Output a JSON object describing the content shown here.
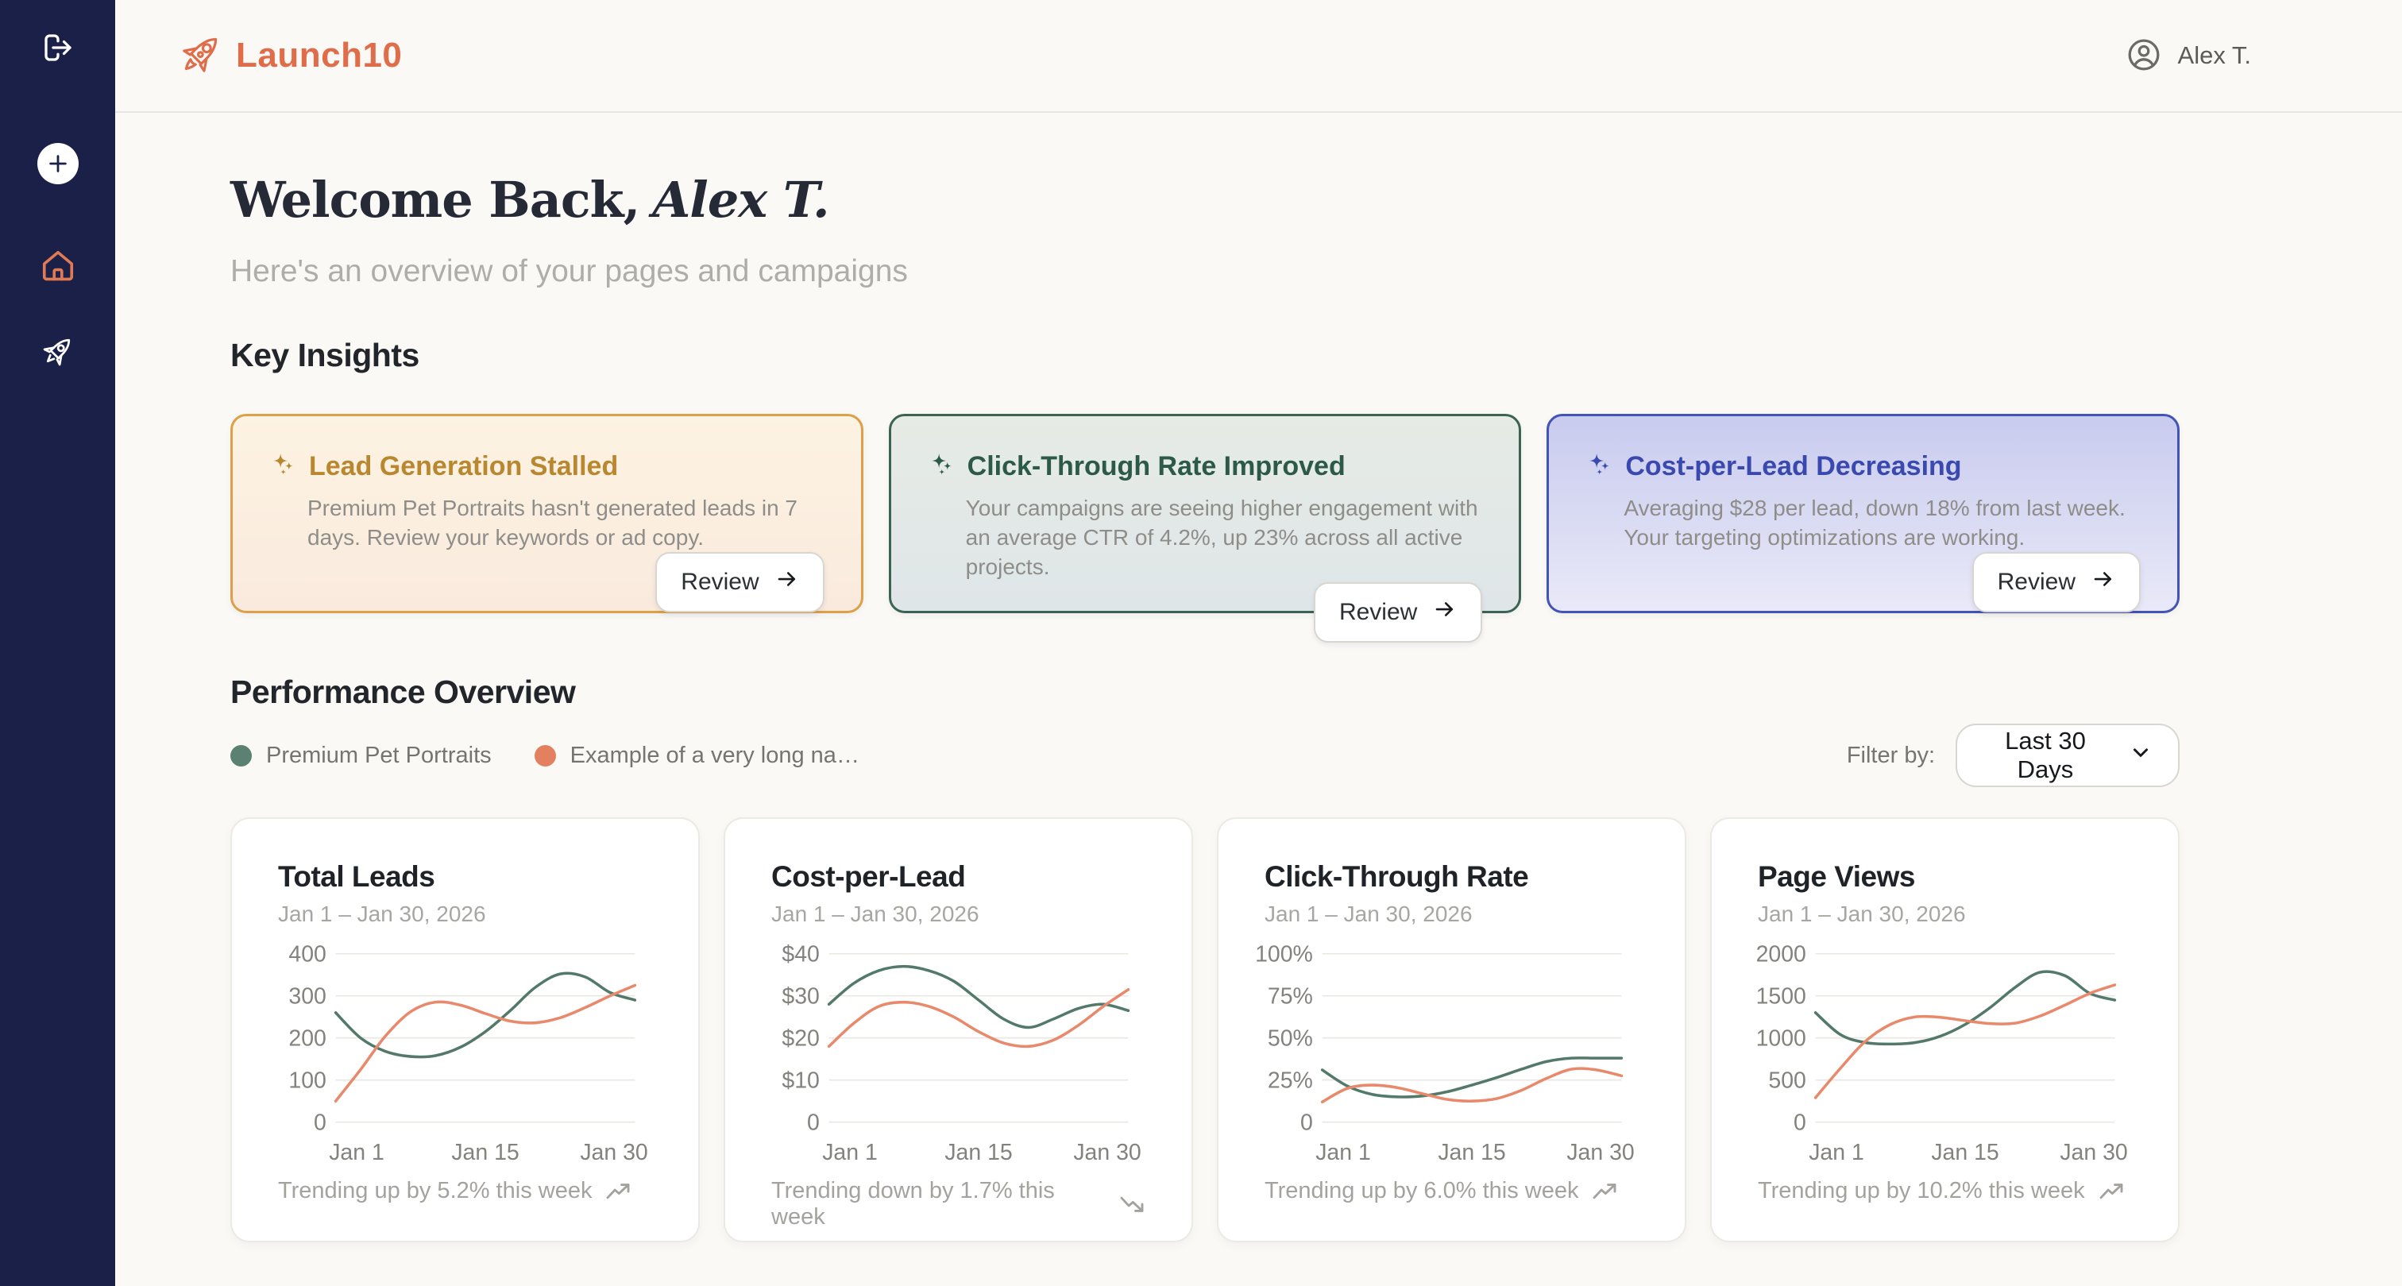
{
  "app": {
    "brand": "Launch10",
    "user_name": "Alex T."
  },
  "sidebar": {
    "icons": [
      "logout-icon",
      "add-icon",
      "home-icon",
      "rocket-icon"
    ],
    "bg_color": "#1b2049",
    "home_icon_color": "#e07a55"
  },
  "welcome": {
    "title_prefix": "Welcome Back,",
    "title_name": "Alex T.",
    "subtitle": "Here's an overview of your pages and campaigns"
  },
  "insights": {
    "heading": "Key Insights",
    "cards": [
      {
        "title": "Lead Generation Stalled",
        "body": "Premium Pet Portraits hasn't generated leads in 7 days. Review your keywords or ad copy.",
        "button_label": "Review",
        "accent": "#b8872f",
        "border": "#dda04a",
        "bg_top": "#fdf3e2",
        "bg_bottom": "#f9eadd"
      },
      {
        "title": "Click-Through Rate Improved",
        "body": "Your campaigns are seeing higher engagement with an average CTR of 4.2%, up 23% across all active projects.",
        "button_label": "Review",
        "accent": "#2c5949",
        "border": "#3c6253",
        "bg_top": "#e6ebe5",
        "bg_bottom": "#dfe6e8"
      },
      {
        "title": "Cost-per-Lead Decreasing",
        "body": "Averaging $28 per lead, down 18% from last week. Your targeting optimizations are working.",
        "button_label": "Review",
        "accent": "#3a49ae",
        "border": "#4353b6",
        "bg_top": "#c8cbee",
        "bg_bottom": "#e9e9f8"
      }
    ]
  },
  "performance": {
    "heading": "Performance Overview",
    "legend": [
      {
        "label": "Premium Pet Portraits",
        "color": "#5b8172"
      },
      {
        "label": "Example of a very long na…",
        "color": "#e3805f"
      }
    ],
    "filter_label": "Filter by:",
    "filter_value": "Last 30 Days"
  },
  "chart_data": [
    {
      "type": "line",
      "title": "Total Leads",
      "subtitle": "Jan 1 – Jan 30, 2026",
      "x_ticks": [
        "Jan 1",
        "Jan 15",
        "Jan 30"
      ],
      "ylim": [
        0,
        400
      ],
      "y_tick_labels": [
        "400",
        "300",
        "200",
        "100",
        "0"
      ],
      "grid": true,
      "legend_position": "none",
      "series": [
        {
          "name": "Premium Pet Portraits",
          "color": "#53796b",
          "values": [
            260,
            200,
            168,
            156,
            158,
            178,
            215,
            265,
            320,
            352,
            345,
            308,
            290
          ]
        },
        {
          "name": "Example of a very long na…",
          "color": "#e8896c",
          "values": [
            50,
            125,
            205,
            262,
            285,
            278,
            258,
            240,
            236,
            248,
            272,
            300,
            325
          ]
        }
      ],
      "footer": "Trending up by 5.2% this week",
      "trend": "up"
    },
    {
      "type": "line",
      "title": "Cost-per-Lead",
      "subtitle": "Jan 1 – Jan 30, 2026",
      "x_ticks": [
        "Jan 1",
        "Jan 15",
        "Jan 30"
      ],
      "ylim": [
        0,
        40
      ],
      "y_tick_labels": [
        "$40",
        "$30",
        "$20",
        "$10",
        "0"
      ],
      "grid": true,
      "legend_position": "none",
      "series": [
        {
          "name": "Premium Pet Portraits",
          "color": "#53796b",
          "values": [
            28,
            33,
            36,
            37,
            36,
            33.5,
            29,
            24.5,
            22.5,
            24.5,
            27,
            28,
            26.5
          ]
        },
        {
          "name": "Example of a very long na…",
          "color": "#e8896c",
          "values": [
            18,
            23.5,
            27.5,
            28.5,
            27.5,
            25,
            21.5,
            18.8,
            18,
            19.5,
            23,
            27.5,
            31.5
          ]
        }
      ],
      "footer": "Trending down by 1.7% this week",
      "trend": "down"
    },
    {
      "type": "line",
      "title": "Click-Through Rate",
      "subtitle": "Jan 1 – Jan 30, 2026",
      "x_ticks": [
        "Jan 1",
        "Jan 15",
        "Jan 30"
      ],
      "ylim": [
        0,
        100
      ],
      "y_tick_labels": [
        "100%",
        "75%",
        "50%",
        "25%",
        "0"
      ],
      "grid": true,
      "legend_position": "none",
      "series": [
        {
          "name": "Premium Pet Portraits",
          "color": "#53796b",
          "values": [
            31,
            21.5,
            16.5,
            15,
            15.5,
            18,
            22,
            26.5,
            31.5,
            36,
            38,
            38,
            38
          ]
        },
        {
          "name": "Example of a very long na…",
          "color": "#e8896c",
          "values": [
            12,
            20,
            22,
            20.5,
            17,
            13.5,
            12.5,
            14,
            19,
            26,
            31.5,
            31,
            27.5
          ]
        }
      ],
      "footer": "Trending up by 6.0% this week",
      "trend": "up"
    },
    {
      "type": "line",
      "title": "Page Views",
      "subtitle": "Jan 1 – Jan 30, 2026",
      "x_ticks": [
        "Jan 1",
        "Jan 15",
        "Jan 30"
      ],
      "ylim": [
        0,
        2000
      ],
      "y_tick_labels": [
        "2000",
        "1500",
        "1000",
        "500",
        "0"
      ],
      "grid": true,
      "legend_position": "none",
      "series": [
        {
          "name": "Premium Pet Portraits",
          "color": "#53796b",
          "values": [
            1300,
            1040,
            945,
            928,
            945,
            1020,
            1160,
            1360,
            1600,
            1780,
            1740,
            1530,
            1450
          ]
        },
        {
          "name": "Example of a very long na…",
          "color": "#e8896c",
          "values": [
            290,
            640,
            960,
            1160,
            1250,
            1245,
            1205,
            1170,
            1175,
            1260,
            1390,
            1530,
            1630
          ]
        }
      ],
      "footer": "Trending up by 10.2% this week",
      "trend": "up"
    }
  ]
}
